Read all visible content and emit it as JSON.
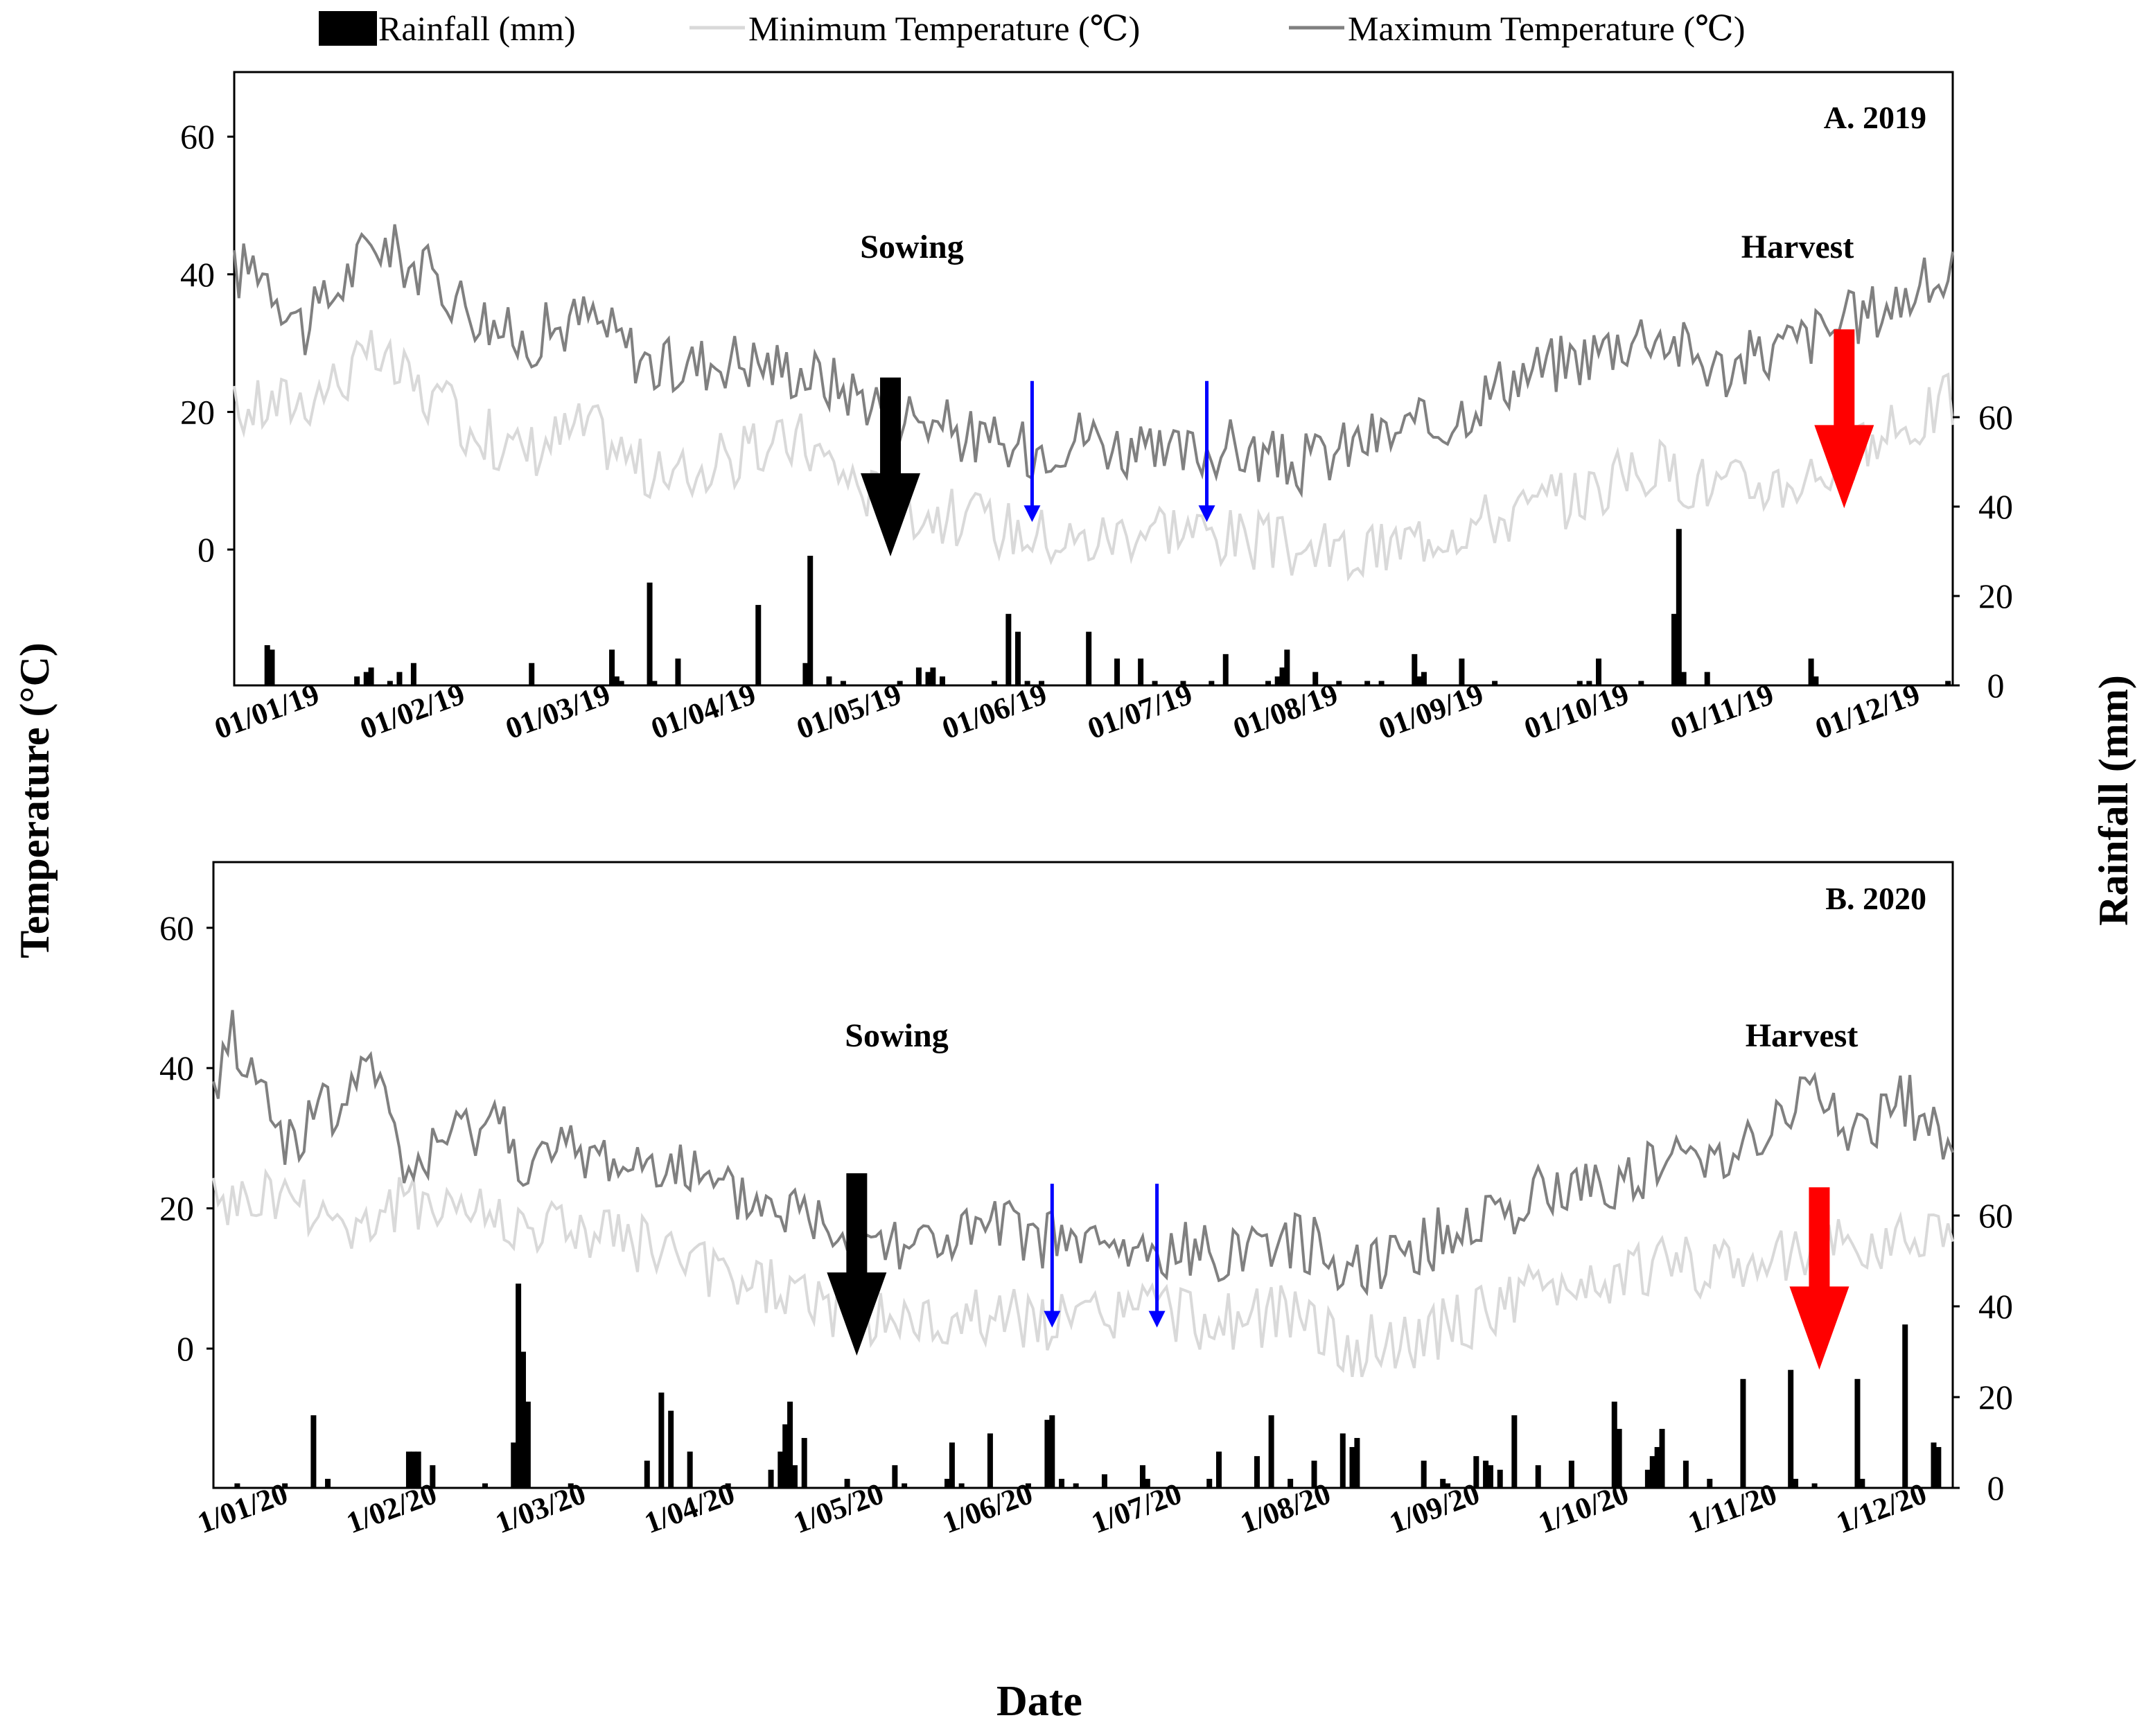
{
  "legend": [
    {
      "label": "Rainfall (mm)",
      "color": "#000000",
      "kind": "bar"
    },
    {
      "label": "Minimum Temperature (℃)",
      "color": "#d9d9d9",
      "kind": "line"
    },
    {
      "label": "Maximum Temperature (℃)",
      "color": "#808080",
      "kind": "line"
    }
  ],
  "axes": {
    "left_label": "Temperature (°C)",
    "right_label": "Rainfall (mm)",
    "x_label": "Date"
  },
  "colors": {
    "sowing_arrow": "#000000",
    "harvest_arrow": "#ff0000",
    "irrigation_arrow": "#0000ff"
  },
  "chart_data": [
    {
      "type": "bar+line",
      "panel_title": "A. 2019",
      "temp_ylim": [
        -20,
        70
      ],
      "temp_ticks": [
        0,
        20,
        40,
        60
      ],
      "rain_ylim": [
        0,
        65
      ],
      "rain_ticks": [
        0,
        20,
        40,
        60
      ],
      "x_range": [
        "01/01/19",
        "31/12/19"
      ],
      "x_ticks": [
        "01/01/19",
        "01/02/19",
        "01/03/19",
        "01/04/19",
        "01/05/19",
        "01/06/19",
        "01/07/19",
        "01/08/19",
        "01/09/19",
        "01/10/19",
        "01/11/19",
        "01/12/19"
      ],
      "max_temp_control": [
        [
          0,
          40
        ],
        [
          5,
          42
        ],
        [
          15,
          32
        ],
        [
          30,
          45
        ],
        [
          45,
          38
        ],
        [
          60,
          30
        ],
        [
          75,
          34
        ],
        [
          90,
          26
        ],
        [
          105,
          28
        ],
        [
          120,
          26
        ],
        [
          135,
          22
        ],
        [
          150,
          18
        ],
        [
          165,
          14
        ],
        [
          180,
          17
        ],
        [
          195,
          13
        ],
        [
          210,
          15
        ],
        [
          225,
          12
        ],
        [
          240,
          16
        ],
        [
          255,
          18
        ],
        [
          270,
          25
        ],
        [
          285,
          28
        ],
        [
          300,
          32
        ],
        [
          315,
          26
        ],
        [
          330,
          30
        ],
        [
          345,
          34
        ],
        [
          364,
          40
        ]
      ],
      "min_temp_control": [
        [
          0,
          20
        ],
        [
          15,
          22
        ],
        [
          30,
          28
        ],
        [
          45,
          20
        ],
        [
          60,
          14
        ],
        [
          75,
          18
        ],
        [
          90,
          10
        ],
        [
          105,
          13
        ],
        [
          120,
          16
        ],
        [
          135,
          8
        ],
        [
          150,
          5
        ],
        [
          165,
          3
        ],
        [
          180,
          1
        ],
        [
          195,
          4
        ],
        [
          210,
          2
        ],
        [
          225,
          0
        ],
        [
          240,
          -1
        ],
        [
          255,
          3
        ],
        [
          270,
          5
        ],
        [
          285,
          8
        ],
        [
          300,
          12
        ],
        [
          315,
          9
        ],
        [
          330,
          10
        ],
        [
          345,
          14
        ],
        [
          364,
          22
        ]
      ],
      "rainfall": [
        [
          7,
          9
        ],
        [
          8,
          8
        ],
        [
          26,
          2
        ],
        [
          28,
          3
        ],
        [
          29,
          4
        ],
        [
          33,
          1
        ],
        [
          35,
          3
        ],
        [
          38,
          5
        ],
        [
          63,
          5
        ],
        [
          80,
          8
        ],
        [
          81,
          2
        ],
        [
          82,
          1
        ],
        [
          88,
          23
        ],
        [
          89,
          1
        ],
        [
          94,
          6
        ],
        [
          111,
          18
        ],
        [
          121,
          5
        ],
        [
          122,
          29
        ],
        [
          126,
          2
        ],
        [
          129,
          1
        ],
        [
          141,
          1
        ],
        [
          145,
          4
        ],
        [
          147,
          3
        ],
        [
          148,
          4
        ],
        [
          150,
          2
        ],
        [
          161,
          1
        ],
        [
          164,
          16
        ],
        [
          166,
          12
        ],
        [
          168,
          1
        ],
        [
          171,
          1
        ],
        [
          181,
          12
        ],
        [
          187,
          6
        ],
        [
          192,
          6
        ],
        [
          195,
          1
        ],
        [
          201,
          1
        ],
        [
          207,
          1
        ],
        [
          210,
          7
        ],
        [
          219,
          1
        ],
        [
          221,
          2
        ],
        [
          222,
          4
        ],
        [
          223,
          8
        ],
        [
          229,
          3
        ],
        [
          234,
          1
        ],
        [
          240,
          1
        ],
        [
          243,
          1
        ],
        [
          250,
          7
        ],
        [
          251,
          2
        ],
        [
          252,
          3
        ],
        [
          260,
          6
        ],
        [
          267,
          1
        ],
        [
          285,
          1
        ],
        [
          287,
          1
        ],
        [
          289,
          6
        ],
        [
          298,
          1
        ],
        [
          305,
          16
        ],
        [
          306,
          35
        ],
        [
          307,
          3
        ],
        [
          312,
          3
        ],
        [
          334,
          6
        ],
        [
          335,
          2
        ],
        [
          363,
          1
        ]
      ],
      "sowing": {
        "label": "Sowing",
        "day": 139
      },
      "harvest": {
        "label": "Harvest",
        "day": 341
      },
      "irrigations": [
        169,
        206
      ]
    },
    {
      "type": "bar+line",
      "panel_title": "B. 2020",
      "temp_ylim": [
        -20,
        70
      ],
      "temp_ticks": [
        0,
        20,
        40,
        60
      ],
      "rain_ylim": [
        0,
        65
      ],
      "rain_ticks": [
        0,
        20,
        40,
        60
      ],
      "x_range": [
        "1/01/20",
        "31/12/20"
      ],
      "x_ticks": [
        "1/01/20",
        "1/02/20",
        "1/03/20",
        "1/04/20",
        "1/05/20",
        "1/06/20",
        "1/07/20",
        "1/08/20",
        "1/09/20",
        "1/10/20",
        "1/11/20",
        "1/12/20"
      ],
      "max_temp_control": [
        [
          0,
          35
        ],
        [
          3,
          46
        ],
        [
          15,
          30
        ],
        [
          30,
          36
        ],
        [
          31,
          45
        ],
        [
          40,
          25
        ],
        [
          55,
          32
        ],
        [
          60,
          33
        ],
        [
          66,
          26
        ],
        [
          75,
          28
        ],
        [
          90,
          26
        ],
        [
          95,
          28
        ],
        [
          105,
          22
        ],
        [
          120,
          20
        ],
        [
          135,
          17
        ],
        [
          150,
          15
        ],
        [
          165,
          17
        ],
        [
          180,
          15
        ],
        [
          195,
          13
        ],
        [
          210,
          14
        ],
        [
          225,
          16
        ],
        [
          240,
          12
        ],
        [
          255,
          15
        ],
        [
          270,
          20
        ],
        [
          285,
          23
        ],
        [
          300,
          25
        ],
        [
          315,
          28
        ],
        [
          330,
          32
        ],
        [
          335,
          38
        ],
        [
          345,
          30
        ],
        [
          355,
          35
        ],
        [
          366,
          30
        ]
      ],
      "min_temp_control": [
        [
          0,
          20
        ],
        [
          15,
          22
        ],
        [
          30,
          17
        ],
        [
          45,
          22
        ],
        [
          60,
          18
        ],
        [
          75,
          17
        ],
        [
          90,
          15
        ],
        [
          105,
          10
        ],
        [
          120,
          8
        ],
        [
          135,
          5
        ],
        [
          150,
          3
        ],
        [
          165,
          5
        ],
        [
          180,
          3
        ],
        [
          195,
          6
        ],
        [
          210,
          3
        ],
        [
          225,
          5
        ],
        [
          240,
          0
        ],
        [
          255,
          2
        ],
        [
          270,
          6
        ],
        [
          285,
          9
        ],
        [
          300,
          11
        ],
        [
          315,
          12
        ],
        [
          330,
          14
        ],
        [
          345,
          14
        ],
        [
          366,
          18
        ]
      ],
      "rainfall": [
        [
          5,
          1
        ],
        [
          15,
          1
        ],
        [
          21,
          16
        ],
        [
          24,
          2
        ],
        [
          41,
          8
        ],
        [
          42,
          8
        ],
        [
          43,
          8
        ],
        [
          46,
          5
        ],
        [
          57,
          1
        ],
        [
          63,
          10
        ],
        [
          64,
          45
        ],
        [
          65,
          30
        ],
        [
          66,
          19
        ],
        [
          75,
          1
        ],
        [
          91,
          6
        ],
        [
          94,
          21
        ],
        [
          96,
          17
        ],
        [
          100,
          8
        ],
        [
          108,
          1
        ],
        [
          117,
          4
        ],
        [
          119,
          8
        ],
        [
          120,
          14
        ],
        [
          121,
          19
        ],
        [
          122,
          5
        ],
        [
          124,
          11
        ],
        [
          133,
          2
        ],
        [
          143,
          5
        ],
        [
          145,
          1
        ],
        [
          154,
          2
        ],
        [
          155,
          10
        ],
        [
          157,
          1
        ],
        [
          163,
          12
        ],
        [
          171,
          1
        ],
        [
          175,
          15
        ],
        [
          176,
          16
        ],
        [
          178,
          2
        ],
        [
          181,
          1
        ],
        [
          187,
          3
        ],
        [
          195,
          5
        ],
        [
          196,
          2
        ],
        [
          209,
          2
        ],
        [
          211,
          8
        ],
        [
          219,
          7
        ],
        [
          222,
          16
        ],
        [
          226,
          2
        ],
        [
          231,
          6
        ],
        [
          237,
          12
        ],
        [
          239,
          9
        ],
        [
          240,
          11
        ],
        [
          254,
          6
        ],
        [
          258,
          2
        ],
        [
          259,
          1
        ],
        [
          265,
          7
        ],
        [
          267,
          6
        ],
        [
          268,
          5
        ],
        [
          270,
          4
        ],
        [
          273,
          16
        ],
        [
          278,
          5
        ],
        [
          285,
          6
        ],
        [
          294,
          19
        ],
        [
          295,
          13
        ],
        [
          301,
          4
        ],
        [
          302,
          7
        ],
        [
          303,
          9
        ],
        [
          304,
          13
        ],
        [
          309,
          6
        ],
        [
          314,
          2
        ],
        [
          321,
          24
        ],
        [
          331,
          26
        ],
        [
          332,
          2
        ],
        [
          336,
          1
        ],
        [
          345,
          24
        ],
        [
          346,
          2
        ],
        [
          355,
          36
        ],
        [
          361,
          10
        ],
        [
          362,
          9
        ]
      ],
      "sowing": {
        "label": "Sowing",
        "day": 135
      },
      "harvest": {
        "label": "Harvest",
        "day": 337
      },
      "irrigations": [
        176,
        198
      ]
    }
  ]
}
